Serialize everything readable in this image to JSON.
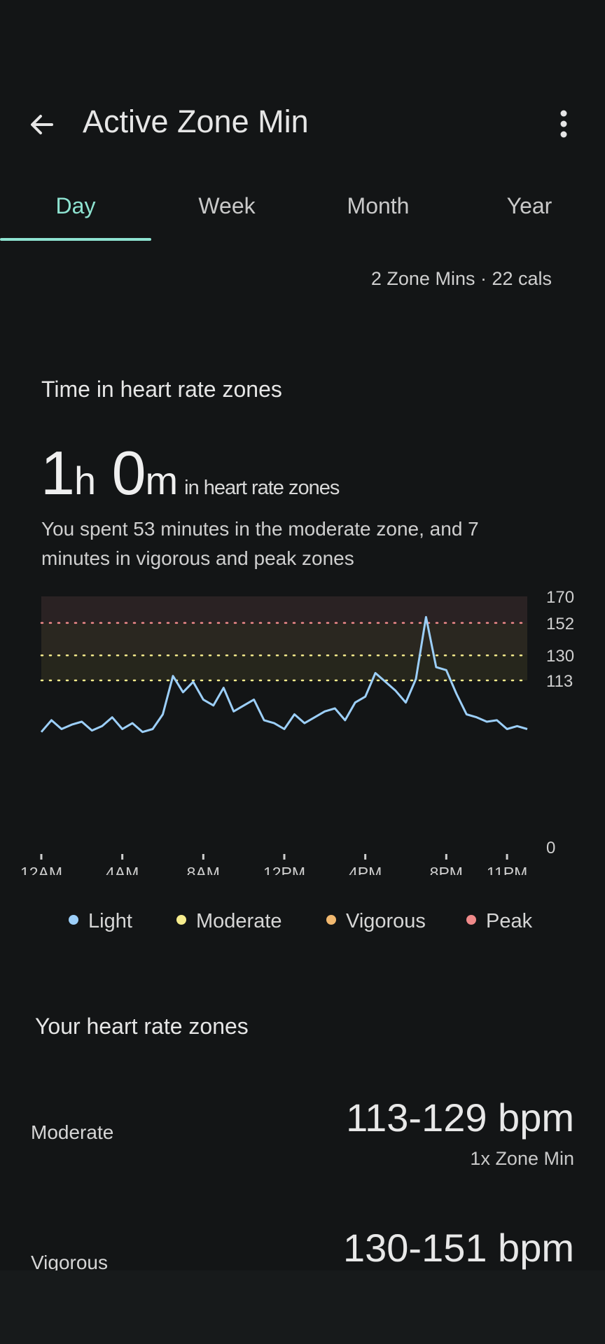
{
  "appbar": {
    "title": "Active Zone Min"
  },
  "tabs": [
    {
      "label": "Day",
      "active": true
    },
    {
      "label": "Week",
      "active": false
    },
    {
      "label": "Month",
      "active": false
    },
    {
      "label": "Year",
      "active": false
    }
  ],
  "summary": "2 Zone Mins · 22 cals",
  "card": {
    "title": "Time in heart rate zones",
    "hours": "1",
    "hours_unit": "h",
    "minutes": "0",
    "minutes_unit": "m",
    "suffix": "in heart rate zones",
    "description": "You spent 53 minutes in the moderate zone, and 7 minutes in vigorous and peak zones"
  },
  "chart_data": {
    "type": "line",
    "y_ticks": [
      "170",
      "152",
      "130",
      "113",
      "0"
    ],
    "x_ticks": [
      "12AM",
      "4AM",
      "8AM",
      "12PM",
      "4PM",
      "8PM",
      "11PM"
    ],
    "zone_thresholds": {
      "moderate": 113,
      "vigorous": 130,
      "peak": 152,
      "max": 170
    },
    "ylim": [
      0,
      170
    ],
    "series_hours": [
      0,
      0.5,
      1,
      1.5,
      2,
      2.5,
      3,
      3.5,
      4,
      4.5,
      5,
      5.5,
      6,
      6.5,
      7,
      7.5,
      8,
      8.5,
      9,
      9.5,
      10,
      10.5,
      11,
      11.5,
      12,
      12.5,
      13,
      13.5,
      14,
      14.5,
      15,
      15.5,
      16,
      16.5,
      17,
      17.5,
      18,
      18.5,
      19,
      19.5,
      20,
      20.5,
      21,
      21.5,
      22,
      22.5,
      23,
      23.5,
      24
    ],
    "series_bpm": [
      78,
      86,
      80,
      83,
      85,
      79,
      82,
      88,
      80,
      84,
      78,
      80,
      90,
      116,
      105,
      112,
      100,
      96,
      108,
      92,
      96,
      100,
      86,
      84,
      80,
      90,
      84,
      88,
      92,
      94,
      86,
      98,
      102,
      118,
      112,
      106,
      98,
      114,
      156,
      122,
      120,
      104,
      90,
      88,
      85,
      86,
      80,
      82,
      80
    ],
    "legend": [
      {
        "label": "Light",
        "color": "#9ccff9"
      },
      {
        "label": "Moderate",
        "color": "#f6ec8d"
      },
      {
        "label": "Vigorous",
        "color": "#f1b86f"
      },
      {
        "label": "Peak",
        "color": "#f08a8a"
      }
    ]
  },
  "zones_section": {
    "title": "Your heart rate zones",
    "zones": [
      {
        "label": "Moderate",
        "range": "113-129 bpm",
        "note": "1x Zone Min"
      },
      {
        "label": "Vigorous",
        "range": "130-151 bpm"
      }
    ]
  },
  "colors": {
    "accent": "#8ee3d1",
    "background": "#131516"
  },
  "icons": {
    "back": "arrow-left-icon",
    "more": "more-vert-icon"
  }
}
